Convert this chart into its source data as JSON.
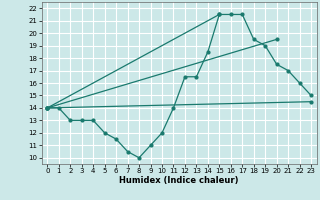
{
  "background_color": "#cce8e8",
  "grid_color": "#ffffff",
  "line_color": "#1a7a6e",
  "xlabel": "Humidex (Indice chaleur)",
  "xlim": [
    -0.5,
    23.5
  ],
  "ylim": [
    9.5,
    22.5
  ],
  "yticks": [
    10,
    11,
    12,
    13,
    14,
    15,
    16,
    17,
    18,
    19,
    20,
    21,
    22
  ],
  "xticks": [
    0,
    1,
    2,
    3,
    4,
    5,
    6,
    7,
    8,
    9,
    10,
    11,
    12,
    13,
    14,
    15,
    16,
    17,
    18,
    19,
    20,
    21,
    22,
    23
  ],
  "series": [
    {
      "x": [
        0,
        1,
        2,
        3,
        4,
        5,
        6,
        7,
        8,
        9,
        10,
        11,
        12,
        13,
        14,
        15,
        16,
        17,
        18,
        19,
        20,
        21,
        22,
        23
      ],
      "y": [
        14.0,
        14.0,
        13.0,
        13.0,
        13.0,
        12.0,
        11.5,
        10.5,
        10.0,
        11.0,
        12.0,
        14.0,
        16.5,
        16.5,
        18.5,
        21.5,
        21.5,
        21.5,
        19.5,
        19.0,
        17.5,
        17.0,
        16.0,
        15.0
      ]
    },
    {
      "x": [
        0,
        23
      ],
      "y": [
        14.0,
        14.5
      ]
    },
    {
      "x": [
        0,
        15
      ],
      "y": [
        14.0,
        21.5
      ]
    },
    {
      "x": [
        0,
        20
      ],
      "y": [
        14.0,
        19.5
      ]
    }
  ]
}
